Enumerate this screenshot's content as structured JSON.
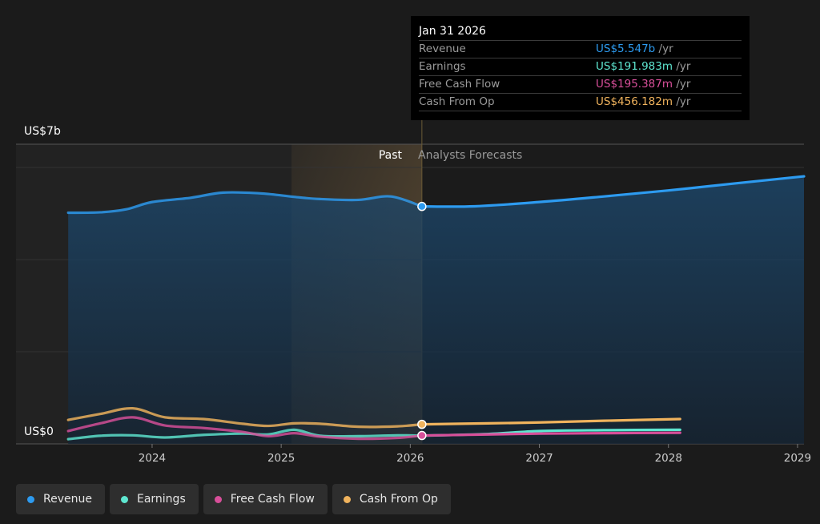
{
  "chart_data": {
    "type": "area",
    "y_axis": {
      "top_label": "US$7b",
      "bottom_label": "US$0",
      "ylim": [
        0,
        7000
      ]
    },
    "x_ticks": [
      "2024",
      "2025",
      "2026",
      "2027",
      "2028",
      "2029"
    ],
    "xlim": [
      2023.2,
      2029.05
    ],
    "divider_x": 2026.09,
    "past_shade_start": 2025.08,
    "past_label": "Past",
    "forecast_label": "Analysts Forecasts",
    "colors": {
      "revenue": "#2d9bf0",
      "earnings": "#5ee6d0",
      "free_cash_flow": "#d84f9a",
      "cash_from_op": "#f0b35d",
      "background": "#1b1b1b"
    },
    "series": [
      {
        "key": "revenue",
        "name": "Revenue",
        "x": [
          2023.35,
          2023.6,
          2023.8,
          2024.0,
          2024.3,
          2024.55,
          2024.85,
          2025.1,
          2025.3,
          2025.6,
          2025.85,
          2026.09,
          2026.5,
          2027.0,
          2027.5,
          2028.0,
          2028.5,
          2029.05
        ],
        "values": [
          5400,
          5410,
          5480,
          5650,
          5750,
          5870,
          5850,
          5770,
          5720,
          5700,
          5780,
          5547,
          5550,
          5650,
          5780,
          5920,
          6080,
          6250
        ],
        "forecast_from": 2026.09
      },
      {
        "key": "earnings",
        "name": "Earnings",
        "x": [
          2023.35,
          2023.6,
          2023.85,
          2024.1,
          2024.4,
          2024.7,
          2024.9,
          2025.1,
          2025.3,
          2025.6,
          2025.9,
          2026.09,
          2026.6,
          2027.0,
          2027.5,
          2028.09
        ],
        "values": [
          110,
          190,
          200,
          150,
          210,
          240,
          220,
          330,
          190,
          180,
          200,
          191.983,
          230,
          300,
          320,
          330
        ],
        "forecast_from": 2026.09
      },
      {
        "key": "free_cash_flow",
        "name": "Free Cash Flow",
        "x": [
          2023.35,
          2023.6,
          2023.85,
          2024.1,
          2024.4,
          2024.7,
          2024.9,
          2025.1,
          2025.3,
          2025.6,
          2025.9,
          2026.09,
          2026.6,
          2027.0,
          2027.5,
          2028.09
        ],
        "values": [
          300,
          480,
          620,
          430,
          370,
          280,
          180,
          250,
          170,
          120,
          140,
          195.387,
          220,
          240,
          250,
          260
        ],
        "forecast_from": 2026.09
      },
      {
        "key": "cash_from_op",
        "name": "Cash From Op",
        "x": [
          2023.35,
          2023.6,
          2023.85,
          2024.1,
          2024.4,
          2024.7,
          2024.9,
          2025.1,
          2025.3,
          2025.6,
          2025.9,
          2026.09,
          2026.6,
          2027.0,
          2027.5,
          2028.09
        ],
        "values": [
          560,
          700,
          830,
          620,
          580,
          470,
          420,
          480,
          470,
          400,
          410,
          456.182,
          480,
          500,
          540,
          580
        ],
        "forecast_from": 2026.09
      }
    ],
    "highlight_x": 2026.09
  },
  "tooltip": {
    "date": "Jan 31 2026",
    "rows": [
      {
        "name": "Revenue",
        "value": "US$5.547b",
        "unit": " /yr",
        "color": "#2d9bf0"
      },
      {
        "name": "Earnings",
        "value": "US$191.983m",
        "unit": " /yr",
        "color": "#5ee6d0"
      },
      {
        "name": "Free Cash Flow",
        "value": "US$195.387m",
        "unit": " /yr",
        "color": "#d84f9a"
      },
      {
        "name": "Cash From Op",
        "value": "US$456.182m",
        "unit": " /yr",
        "color": "#f0b35d"
      }
    ]
  },
  "legend": [
    {
      "label": "Revenue",
      "color": "#2d9bf0"
    },
    {
      "label": "Earnings",
      "color": "#5ee6d0"
    },
    {
      "label": "Free Cash Flow",
      "color": "#d84f9a"
    },
    {
      "label": "Cash From Op",
      "color": "#f0b35d"
    }
  ]
}
